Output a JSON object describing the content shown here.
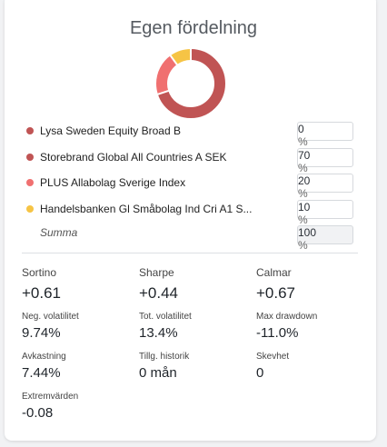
{
  "title": "Egen fördelning",
  "unit": "%",
  "funds": [
    {
      "name": "Lysa Sweden Equity Broad B",
      "color": "#c05454",
      "value": 0
    },
    {
      "name": "Storebrand Global All Countries A SEK",
      "color": "#c05454",
      "value": 70
    },
    {
      "name": "PLUS Allabolag Sverige Index",
      "color": "#f07070",
      "value": 20
    },
    {
      "name": "Handelsbanken Gl Småbolag Ind Cri A1 S...",
      "color": "#f6c445",
      "value": 10
    }
  ],
  "summa": {
    "label": "Summa",
    "value": 100
  },
  "metrics": [
    {
      "label": "Sortino",
      "value": "+0.61"
    },
    {
      "label": "Sharpe",
      "value": "+0.44"
    },
    {
      "label": "Calmar",
      "value": "+0.67"
    },
    {
      "label": "Neg. volatilitet",
      "value": "9.74%"
    },
    {
      "label": "Tot. volatilitet",
      "value": "13.4%"
    },
    {
      "label": "Max drawdown",
      "value": "-11.0%"
    },
    {
      "label": "Avkastning",
      "value": "7.44%"
    },
    {
      "label": "Tillg. historik",
      "value": "0 mån"
    },
    {
      "label": "Skevhet",
      "value": "0"
    },
    {
      "label": "Extremvärden",
      "value": "-0.08"
    }
  ]
}
